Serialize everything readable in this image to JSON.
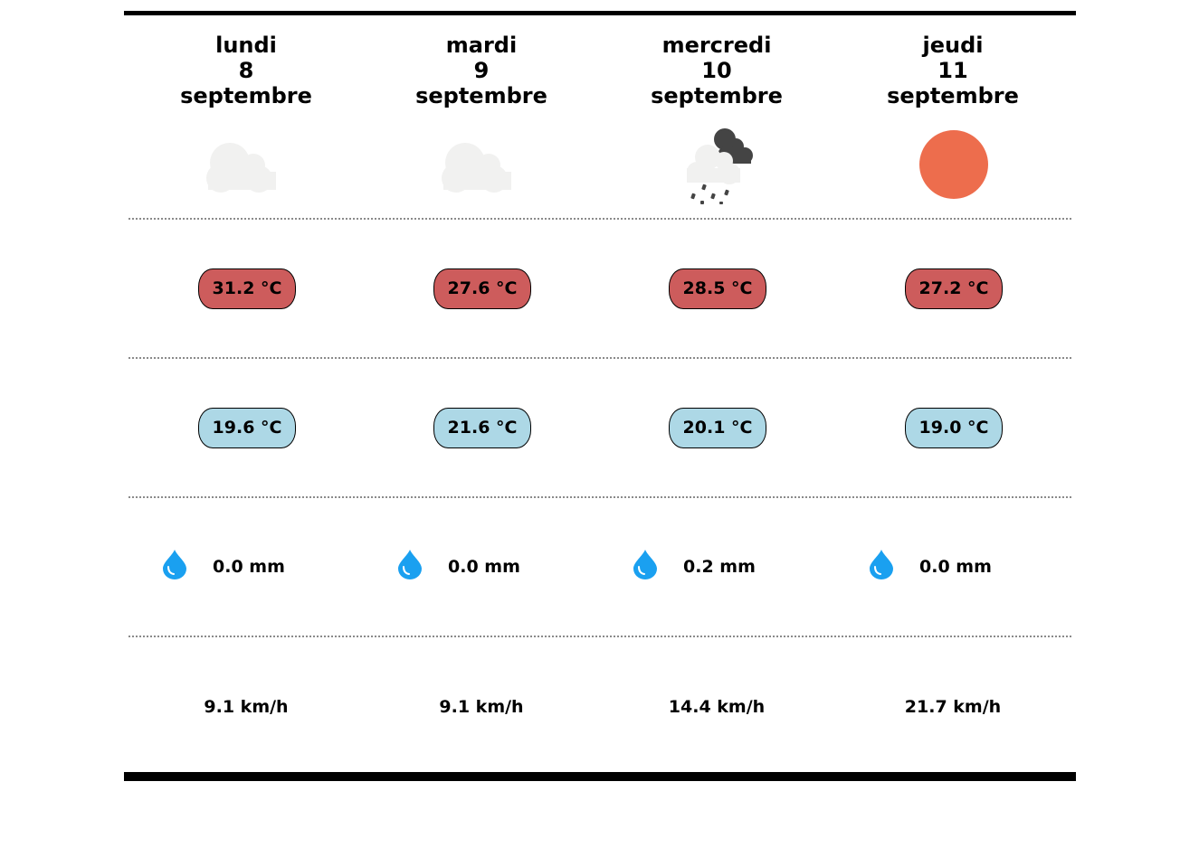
{
  "days": [
    {
      "weekday": "lundi",
      "day": "8",
      "month": "septembre",
      "icon": "cloud-icon",
      "max_temp": "31.2 °C",
      "min_temp": "19.6 °C",
      "rain": "0.0 mm",
      "wind": "9.1 km/h"
    },
    {
      "weekday": "mardi",
      "day": "9",
      "month": "septembre",
      "icon": "cloud-icon",
      "max_temp": "27.6 °C",
      "min_temp": "21.6 °C",
      "rain": "0.0 mm",
      "wind": "9.1 km/h"
    },
    {
      "weekday": "mercredi",
      "day": "10",
      "month": "septembre",
      "icon": "rain-cloud-icon",
      "max_temp": "28.5 °C",
      "min_temp": "20.1 °C",
      "rain": "0.2 mm",
      "wind": "14.4 km/h"
    },
    {
      "weekday": "jeudi",
      "day": "11",
      "month": "septembre",
      "icon": "sun-icon",
      "max_temp": "27.2 °C",
      "min_temp": "19.0 °C",
      "rain": "0.0 mm",
      "wind": "21.7 km/h"
    }
  ],
  "icons": {
    "rain_row": "water-drop-icon"
  },
  "colors": {
    "max_temp_bg": "#cd5c5c",
    "min_temp_bg": "#add8e6",
    "sun": "#ed6d4d",
    "drop": "#1aa0f0",
    "cloud_light": "#f1f1f0",
    "cloud_dark": "#444444"
  }
}
